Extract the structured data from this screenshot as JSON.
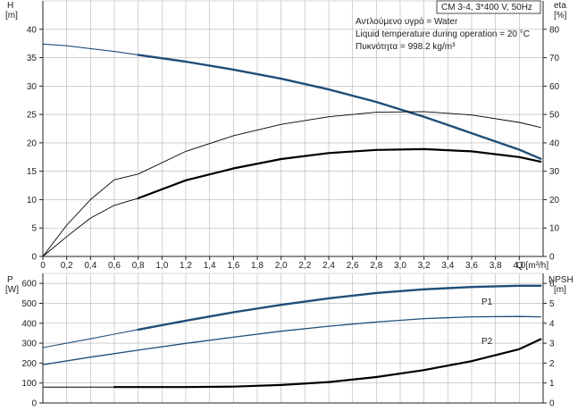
{
  "colors": {
    "grid": "#b4b4b4",
    "axis": "#222222",
    "blue": "#1f4e79",
    "black": "#000000",
    "text": "#222222"
  },
  "chart_data": [
    {
      "type": "line",
      "id": "top",
      "info_box": "CM 3-4, 3*400 V, 50Hz",
      "notes": [
        "Αντλούμενο υγρό = Water",
        "Liquid temperature during operation = 20 °C",
        "Πυκνότητα = 998.2 kg/m³"
      ],
      "left_axis": {
        "unit": "[m]",
        "title": "H",
        "lim": [
          0,
          45
        ],
        "ticks": [
          0,
          5,
          10,
          15,
          20,
          25,
          30,
          35,
          40
        ]
      },
      "right_axis": {
        "unit": "[%]",
        "title": "eta",
        "lim": [
          0,
          90
        ],
        "ticks": [
          0,
          10,
          20,
          30,
          40,
          50,
          60,
          70,
          80
        ]
      },
      "x_axis": {
        "label": "Q [m³/h]",
        "lim": [
          0,
          4.2
        ],
        "ticks": [
          "0",
          "0,2",
          "0,4",
          "0,6",
          "0,8",
          "1,0",
          "1,2",
          "1,4",
          "1,6",
          "1,8",
          "2,0",
          "2,2",
          "2,4",
          "2,6",
          "2,8",
          "3,0",
          "3,2",
          "3,4",
          "3,6",
          "3,8",
          "4,0"
        ]
      },
      "grid": true,
      "series": [
        {
          "axis": "left",
          "color": "blue",
          "width": 1.1,
          "x": [
            0,
            0.2,
            0.4,
            0.6,
            0.8
          ],
          "y": [
            37.4,
            37.1,
            36.6,
            36.1,
            35.5
          ]
        },
        {
          "axis": "left",
          "color": "blue",
          "width": 2.4,
          "x": [
            0.8,
            1.2,
            1.6,
            2.0,
            2.4,
            2.8,
            3.2,
            3.6,
            4.0,
            4.18
          ],
          "y": [
            35.5,
            34.3,
            32.9,
            31.3,
            29.4,
            27.2,
            24.6,
            21.7,
            18.8,
            17.2
          ]
        },
        {
          "axis": "right",
          "color": "black",
          "width": 0.9,
          "x": [
            0,
            0.2,
            0.4,
            0.6,
            0.8,
            1.2,
            1.6,
            2.0,
            2.4,
            2.8,
            3.2,
            3.6,
            4.0,
            4.18
          ],
          "y": [
            0,
            11,
            20,
            27,
            29,
            37,
            42.5,
            46.5,
            49.2,
            50.8,
            51.0,
            49.8,
            47.2,
            45.4
          ]
        },
        {
          "axis": "right",
          "color": "black",
          "width": 0.9,
          "x": [
            0,
            0.2,
            0.4,
            0.6,
            0.8
          ],
          "y": [
            0,
            7,
            13.5,
            18,
            20.5
          ]
        },
        {
          "axis": "right",
          "color": "black",
          "width": 2.2,
          "x": [
            0.8,
            1.2,
            1.6,
            2.0,
            2.4,
            2.8,
            3.2,
            3.6,
            4.0,
            4.18
          ],
          "y": [
            20.5,
            26.8,
            31.0,
            34.3,
            36.4,
            37.5,
            37.8,
            37.0,
            35.0,
            33.4
          ]
        }
      ]
    },
    {
      "type": "line",
      "id": "bottom",
      "left_axis": {
        "unit": "[W]",
        "title": "P",
        "lim": [
          0,
          650
        ],
        "ticks": [
          0,
          100,
          200,
          300,
          400,
          500,
          600
        ]
      },
      "right_axis": {
        "unit": "[m]",
        "title": "NPSH",
        "lim": [
          0,
          6.5
        ],
        "ticks": [
          0,
          1,
          2,
          3,
          4,
          5,
          6
        ]
      },
      "x_axis": {
        "lim": [
          0,
          4.2
        ]
      },
      "grid": true,
      "series": [
        {
          "name": "P1",
          "axis": "left",
          "color": "blue",
          "width": 1.1,
          "x": [
            0,
            0.2,
            0.4,
            0.6,
            0.8
          ],
          "y": [
            278,
            300,
            322,
            345,
            368
          ]
        },
        {
          "name": "P1",
          "axis": "left",
          "color": "blue",
          "width": 2.4,
          "x": [
            0.8,
            1.2,
            1.6,
            2.0,
            2.4,
            2.8,
            3.2,
            3.6,
            4.0,
            4.18
          ],
          "y": [
            368,
            413,
            455,
            492,
            525,
            552,
            570,
            582,
            588,
            588
          ]
        },
        {
          "name": "P2",
          "axis": "left",
          "color": "blue",
          "width": 1.3,
          "x": [
            0,
            0.4,
            0.8,
            1.2,
            1.6,
            2.0,
            2.4,
            2.8,
            3.2,
            3.6,
            4.0,
            4.18
          ],
          "y": [
            192,
            230,
            265,
            299,
            330,
            360,
            385,
            406,
            423,
            432,
            434,
            432
          ]
        },
        {
          "axis": "right",
          "color": "black",
          "width": 1.0,
          "x": [
            0,
            0.6
          ],
          "y": [
            0.8,
            0.8
          ]
        },
        {
          "axis": "right",
          "color": "black",
          "width": 2.2,
          "x": [
            0.6,
            1.2,
            1.6,
            2.0,
            2.4,
            2.8,
            3.2,
            3.6,
            4.0,
            4.18
          ],
          "y": [
            0.8,
            0.8,
            0.82,
            0.9,
            1.05,
            1.3,
            1.65,
            2.1,
            2.7,
            3.2
          ]
        }
      ]
    }
  ]
}
